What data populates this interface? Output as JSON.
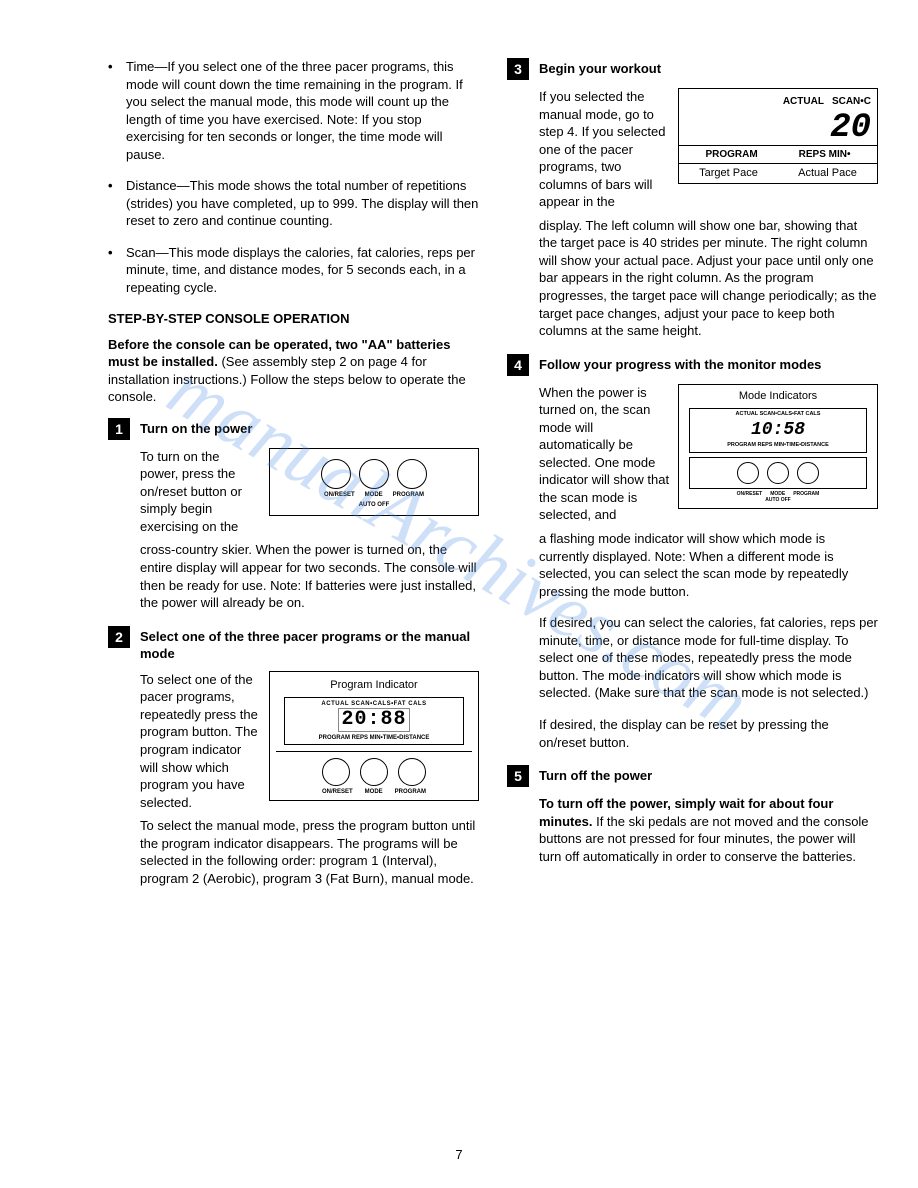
{
  "watermark": "manualArchives.com",
  "page_number": "7",
  "left": {
    "bullets": [
      "Time—If you select one of the three pacer programs, this mode will count down the time remaining in the program. If you select the manual mode, this mode will count up the length of time you have exercised. Note: If you stop exercising for ten seconds or longer, the time mode will pause.",
      "Distance—This mode shows the total number of repetitions (strides) you have completed, up to 999. The display will then reset to zero and continue counting.",
      "Scan—This mode displays the calories, fat calories, reps per minute, time, and distance modes, for 5 seconds each, in a repeating cycle."
    ],
    "header": "STEP-BY-STEP CONSOLE OPERATION",
    "intro": "Before the console can be operated, two \"AA\" batteries must be installed. (See assembly step 2 on page 4 for installation instructions.) Follow the steps below to operate the console.",
    "step1": {
      "num": "1",
      "title": "Turn on the power",
      "wrap_text": "To turn on the power, press the on/reset button or simply begin exercising on the",
      "cont": "cross-country skier. When the power is turned on, the entire display will appear for two seconds. The console will then be ready for use. Note: If batteries were just installed, the power will already be on.",
      "fig": {
        "labels": [
          "ON/RESET",
          "MODE",
          "PROGRAM"
        ],
        "auto_off": "AUTO OFF"
      }
    },
    "step2": {
      "num": "2",
      "title": "Select one of the three pacer programs or the manual mode",
      "wrap_text": "To select one of the pacer programs, repeatedly press the program button. The program indicator will show which program you have selected.",
      "cont": "To select the manual mode, press the program button until the program indicator disappears. The programs will be selected in the following order: program 1 (Interval), program 2 (Aerobic), program 3 (Fat Burn), manual mode.",
      "fig": {
        "caption": "Program Indicator",
        "lcd_top": "ACTUAL SCAN•CALS•FAT CALS",
        "lcd_main": "20:88",
        "lcd_bot": "PROGRAM REPS MIN•TIME•DISTANCE",
        "labels": [
          "ON/RESET",
          "MODE",
          "PROGRAM"
        ]
      }
    }
  },
  "right": {
    "step3": {
      "num": "3",
      "title": "Begin your workout",
      "wrap_text": "If you selected the manual mode, go to step 4. If you selected one of the pacer programs, two columns of bars will appear in the",
      "cont": "display. The left column will show one bar, showing that the target pace is 40 strides per minute. The right column will show your actual pace. Adjust your pace until only one bar appears in the right column. As the program progresses, the target pace will change periodically; as the target pace changes, adjust your pace to keep both columns at the same height.",
      "fig": {
        "top1": "ACTUAL",
        "top2": "SCAN•C",
        "digits": "20",
        "bot1": "PROGRAM",
        "bot2": "REPS MIN•",
        "cap1": "Target Pace",
        "cap2": "Actual Pace"
      }
    },
    "step4": {
      "num": "4",
      "title": "Follow your progress with the monitor modes",
      "wrap_text": "When the power is turned on, the scan mode will automatically be selected. One mode indicator will show that the scan mode is selected, and",
      "cont": "a flashing mode indicator will show which mode is currently displayed. Note: When a different mode is selected, you can select the scan mode by repeatedly pressing the mode button.",
      "p2": "If desired, you can select the calories, fat calories, reps per minute, time, or distance mode for full-time display. To select one of these modes, repeatedly press the mode button. The mode indicators will show which mode is selected. (Make sure that the scan mode is not selected.)",
      "p3": "If desired, the display can be reset by pressing the on/reset button.",
      "fig": {
        "caption": "Mode Indicators",
        "lcd_top": "ACTUAL SCAN•CALS•FAT CALS",
        "lcd_main": "10:58",
        "lcd_bot": "PROGRAM REPS MIN•TIME•DISTANCE",
        "labels": [
          "ON/RESET",
          "MODE",
          "PROGRAM"
        ],
        "auto_off": "AUTO OFF"
      }
    },
    "step5": {
      "num": "5",
      "title": "Turn off the power",
      "body": "To turn off the power, simply wait for about four minutes. If the ski pedals are not moved and the console buttons are not pressed for four minutes, the power will turn off automatically in order to conserve the batteries."
    }
  }
}
